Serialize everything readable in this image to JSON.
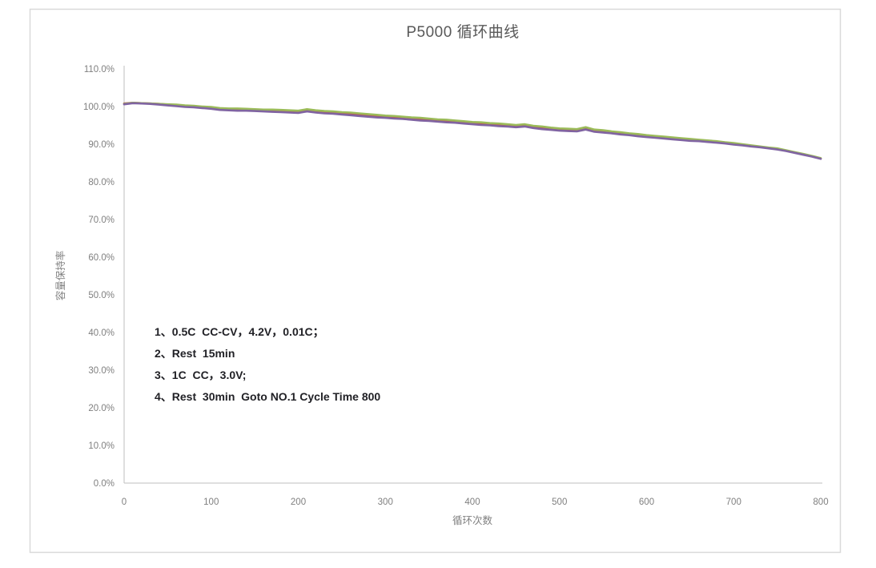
{
  "frame": {
    "border_color": "#d9d9d9",
    "background": "#ffffff"
  },
  "styles": {
    "title_color": "#595959",
    "axis_line_color": "#bfbfbf",
    "tick_label_color": "#7f7f7f",
    "annotation_color": "#212126"
  },
  "chart_data": {
    "type": "line",
    "title": "P5000 循环曲线",
    "xlabel": "循环次数",
    "ylabel": "容量保持率",
    "xlim": [
      0,
      800
    ],
    "ylim_percent": [
      0,
      110
    ],
    "grid": false,
    "legend": "none",
    "x_ticks": [
      0,
      100,
      200,
      300,
      400,
      500,
      600,
      700,
      800
    ],
    "y_ticks": [
      {
        "value": 0,
        "label": "0.0%"
      },
      {
        "value": 10,
        "label": "10.0%"
      },
      {
        "value": 20,
        "label": "20.0%"
      },
      {
        "value": 30,
        "label": "30.0%"
      },
      {
        "value": 40,
        "label": "40.0%"
      },
      {
        "value": 50,
        "label": "50.0%"
      },
      {
        "value": 60,
        "label": "60.0%"
      },
      {
        "value": 70,
        "label": "70.0%"
      },
      {
        "value": 80,
        "label": "80.0%"
      },
      {
        "value": 90,
        "label": "90.0%"
      },
      {
        "value": 100,
        "label": "100.0%"
      },
      {
        "value": 110,
        "label": "110.0%"
      }
    ],
    "x_start": 0,
    "x_step": 10,
    "series": [
      {
        "name": "red-series",
        "color": "#C0504D",
        "values": [
          100.8,
          101.0,
          100.9,
          100.8,
          100.7,
          100.5,
          100.4,
          100.2,
          100.1,
          99.9,
          99.8,
          99.4,
          99.3,
          99.3,
          99.2,
          99.1,
          99.0,
          98.9,
          98.9,
          98.8,
          98.7,
          99.0,
          98.8,
          98.6,
          98.5,
          98.3,
          98.1,
          97.9,
          97.7,
          97.5,
          97.4,
          97.2,
          97.1,
          96.9,
          96.7,
          96.6,
          96.4,
          96.2,
          96.1,
          95.9,
          95.7,
          95.5,
          95.4,
          95.2,
          95.1,
          94.9,
          95.1,
          94.7,
          94.4,
          94.2,
          94.0,
          93.9,
          93.8,
          94.2,
          93.6,
          93.4,
          93.2,
          92.9,
          92.7,
          92.4,
          92.2,
          92.0,
          91.8,
          91.6,
          91.4,
          91.2,
          91.0,
          90.8,
          90.6,
          90.4,
          90.1,
          89.9,
          89.6,
          89.3,
          89.0,
          88.7,
          88.3,
          87.8,
          87.3,
          86.8,
          86.2
        ]
      },
      {
        "name": "green-series",
        "color": "#9BBB59",
        "values": [
          100.7,
          101.0,
          100.9,
          100.8,
          100.7,
          100.6,
          100.5,
          100.3,
          100.2,
          100.0,
          99.9,
          99.6,
          99.5,
          99.5,
          99.4,
          99.3,
          99.2,
          99.2,
          99.1,
          99.0,
          98.9,
          99.3,
          99.0,
          98.8,
          98.7,
          98.5,
          98.4,
          98.2,
          98.0,
          97.8,
          97.6,
          97.5,
          97.3,
          97.1,
          97.0,
          96.8,
          96.6,
          96.5,
          96.3,
          96.1,
          95.9,
          95.8,
          95.6,
          95.5,
          95.3,
          95.1,
          95.3,
          94.9,
          94.7,
          94.4,
          94.2,
          94.1,
          94.0,
          94.5,
          93.9,
          93.7,
          93.4,
          93.2,
          92.9,
          92.7,
          92.4,
          92.2,
          92.0,
          91.8,
          91.6,
          91.4,
          91.2,
          91.0,
          90.8,
          90.5,
          90.3,
          90.0,
          89.7,
          89.4,
          89.1,
          88.9,
          88.4,
          87.9,
          87.4,
          86.9,
          86.3
        ]
      },
      {
        "name": "purple-series",
        "color": "#8064A2",
        "values": [
          100.6,
          100.9,
          100.8,
          100.7,
          100.5,
          100.3,
          100.1,
          99.9,
          99.8,
          99.6,
          99.4,
          99.1,
          99.0,
          98.9,
          98.9,
          98.8,
          98.7,
          98.6,
          98.5,
          98.4,
          98.3,
          98.7,
          98.4,
          98.2,
          98.1,
          97.9,
          97.7,
          97.5,
          97.3,
          97.1,
          97.0,
          96.8,
          96.7,
          96.5,
          96.3,
          96.2,
          96.0,
          95.8,
          95.7,
          95.5,
          95.3,
          95.1,
          95.0,
          94.8,
          94.7,
          94.5,
          94.7,
          94.3,
          94.0,
          93.8,
          93.6,
          93.5,
          93.4,
          93.9,
          93.3,
          93.1,
          92.9,
          92.6,
          92.4,
          92.1,
          91.9,
          91.7,
          91.5,
          91.3,
          91.1,
          90.9,
          90.8,
          90.6,
          90.4,
          90.2,
          89.9,
          89.7,
          89.4,
          89.2,
          88.9,
          88.6,
          88.2,
          87.7,
          87.2,
          86.7,
          86.1
        ]
      }
    ],
    "annotation": {
      "lines": [
        "1、0.5C  CC-CV，4.2V，0.01C；",
        "2、Rest  15min",
        "3、1C  CC，3.0V;",
        "4、Rest  30min  Goto NO.1 Cycle Time 800"
      ]
    }
  }
}
